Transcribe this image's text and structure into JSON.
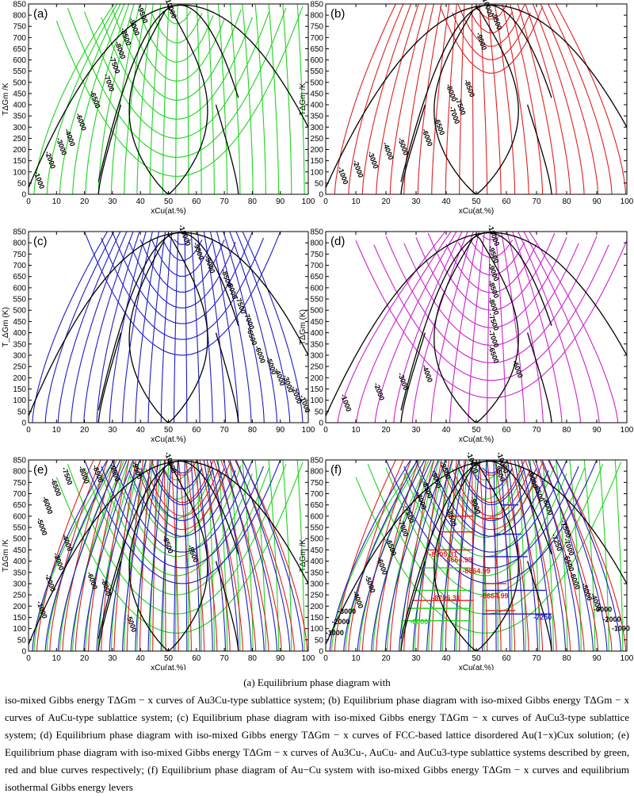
{
  "figure": {
    "y_label": "T_ΔGm /K",
    "x_label": "x_Cu(at.%)"
  },
  "chart_data": [
    {
      "type": "line",
      "panel": "(a)",
      "title": "",
      "xlabel": "xCu(at.%)",
      "ylabel": "TΔGm /K",
      "xlim": [
        0,
        100
      ],
      "ylim": [
        0,
        850
      ],
      "xticks": [
        0,
        10,
        20,
        30,
        40,
        50,
        60,
        70,
        80,
        90,
        100
      ],
      "yticks": [
        0,
        50,
        100,
        150,
        200,
        250,
        300,
        350,
        400,
        450,
        500,
        550,
        600,
        650,
        700,
        750,
        800,
        850
      ],
      "contour_color": "#1ed41e",
      "contour_labels": [
        {
          "text": "-10000",
          "x": 50,
          "y": 830
        },
        {
          "text": "-9500",
          "x": 40,
          "y": 800
        },
        {
          "text": "-9000",
          "x": 37,
          "y": 745
        },
        {
          "text": "-8500",
          "x": 34,
          "y": 700
        },
        {
          "text": "-8000",
          "x": 32,
          "y": 640
        },
        {
          "text": "-7500",
          "x": 30,
          "y": 575
        },
        {
          "text": "-7000",
          "x": 28,
          "y": 495
        },
        {
          "text": "-6500",
          "x": 23,
          "y": 420
        },
        {
          "text": "-6000",
          "x": 18,
          "y": 320
        },
        {
          "text": "-4000",
          "x": 14,
          "y": 250
        },
        {
          "text": "-3000",
          "x": 11,
          "y": 210
        },
        {
          "text": "-2000",
          "x": 7,
          "y": 150
        },
        {
          "text": "-1000",
          "x": 3,
          "y": 60
        }
      ]
    },
    {
      "type": "line",
      "panel": "(b)",
      "title": "",
      "xlabel": "xCu(at.%)",
      "ylabel": "TΔGm /K",
      "xlim": [
        0,
        100
      ],
      "ylim": [
        0,
        850
      ],
      "xticks": [
        0,
        10,
        20,
        30,
        40,
        50,
        60,
        70,
        80,
        90,
        100
      ],
      "yticks": [
        0,
        50,
        100,
        150,
        200,
        250,
        300,
        350,
        400,
        450,
        500,
        550,
        600,
        650,
        700,
        750,
        800,
        850
      ],
      "contour_color": "#e02020",
      "contour_labels": [
        {
          "text": "-10000",
          "x": 53,
          "y": 835
        },
        {
          "text": "-9500",
          "x": 56,
          "y": 770
        },
        {
          "text": "-9000",
          "x": 51,
          "y": 680
        },
        {
          "text": "-8500",
          "x": 47,
          "y": 470
        },
        {
          "text": "-8000",
          "x": 41,
          "y": 450
        },
        {
          "text": "-7500",
          "x": 44,
          "y": 390
        },
        {
          "text": "-7000",
          "x": 42,
          "y": 350
        },
        {
          "text": "-6500",
          "x": 37,
          "y": 300
        },
        {
          "text": "-6000",
          "x": 33,
          "y": 250
        },
        {
          "text": "-5000",
          "x": 25,
          "y": 210
        },
        {
          "text": "-4000",
          "x": 20,
          "y": 190
        },
        {
          "text": "-3000",
          "x": 15,
          "y": 150
        },
        {
          "text": "-2000",
          "x": 10,
          "y": 110
        },
        {
          "text": "-1000",
          "x": 5,
          "y": 80
        }
      ]
    },
    {
      "type": "line",
      "panel": "(c)",
      "title": "",
      "xlabel": "xCu(at.%)",
      "ylabel": "T_ΔGm (K)",
      "xlim": [
        0,
        100
      ],
      "ylim": [
        0,
        850
      ],
      "xticks": [
        0,
        10,
        20,
        30,
        40,
        50,
        60,
        70,
        80,
        90,
        100
      ],
      "yticks": [
        0,
        50,
        100,
        150,
        200,
        250,
        300,
        350,
        400,
        450,
        500,
        550,
        600,
        650,
        700,
        750,
        800,
        850
      ],
      "contour_color": "#1c1cc8",
      "contour_labels": [
        {
          "text": "-10000",
          "x": 55,
          "y": 830
        },
        {
          "text": "-9500",
          "x": 60,
          "y": 760
        },
        {
          "text": "-9000",
          "x": 64,
          "y": 700
        },
        {
          "text": "-8500",
          "x": 70,
          "y": 640
        },
        {
          "text": "-8000",
          "x": 72,
          "y": 585
        },
        {
          "text": "-7500",
          "x": 75,
          "y": 520
        },
        {
          "text": "-7000",
          "x": 78,
          "y": 450
        },
        {
          "text": "-6500",
          "x": 79,
          "y": 380
        },
        {
          "text": "-6000",
          "x": 82,
          "y": 300
        },
        {
          "text": "-5000",
          "x": 86,
          "y": 250
        },
        {
          "text": "-4000",
          "x": 89,
          "y": 200
        },
        {
          "text": "-3000",
          "x": 92,
          "y": 170
        },
        {
          "text": "-2000",
          "x": 95,
          "y": 120
        },
        {
          "text": "-1000",
          "x": 98,
          "y": 80
        }
      ]
    },
    {
      "type": "line",
      "panel": "(d)",
      "title": "",
      "xlabel": "xCu(at.%)",
      "ylabel": "TΔGm (K)",
      "xlim": [
        0,
        100
      ],
      "ylim": [
        0,
        850
      ],
      "xticks": [
        0,
        10,
        20,
        30,
        40,
        50,
        60,
        70,
        80,
        90,
        100
      ],
      "yticks": [
        0,
        50,
        100,
        150,
        200,
        250,
        300,
        350,
        400,
        450,
        500,
        550,
        600,
        650,
        700,
        750,
        800,
        850
      ],
      "contour_color": "#cc22cc",
      "contour_labels": [
        {
          "text": "-10000",
          "x": 55,
          "y": 830
        },
        {
          "text": "-9500",
          "x": 55,
          "y": 745
        },
        {
          "text": "-9000",
          "x": 55,
          "y": 665
        },
        {
          "text": "-8500",
          "x": 55,
          "y": 590
        },
        {
          "text": "-8000",
          "x": 55,
          "y": 515
        },
        {
          "text": "-7500",
          "x": 55,
          "y": 445
        },
        {
          "text": "-7000",
          "x": 55,
          "y": 370
        },
        {
          "text": "-6500",
          "x": 55,
          "y": 300
        },
        {
          "text": "-6000",
          "x": 63,
          "y": 235
        },
        {
          "text": "-4000",
          "x": 33,
          "y": 215
        },
        {
          "text": "-3000",
          "x": 25,
          "y": 180
        },
        {
          "text": "-2000",
          "x": 17,
          "y": 135
        },
        {
          "text": "-1000",
          "x": 6,
          "y": 85
        }
      ]
    },
    {
      "type": "line",
      "panel": "(e)",
      "title": "",
      "xlabel": "xCu(at.%)",
      "ylabel": "TΔGm /K",
      "xlim": [
        0,
        100
      ],
      "ylim": [
        0,
        850
      ],
      "xticks": [
        0,
        10,
        20,
        30,
        40,
        50,
        60,
        70,
        80,
        90,
        100
      ],
      "yticks": [
        0,
        50,
        100,
        150,
        200,
        250,
        300,
        350,
        400,
        450,
        500,
        550,
        600,
        650,
        700,
        750,
        800,
        850
      ],
      "series": [
        {
          "name": "Au3Cu",
          "color": "#1ed41e"
        },
        {
          "name": "AuCu",
          "color": "#e02020"
        },
        {
          "name": "AuCu3",
          "color": "#1c1cc8"
        }
      ],
      "contour_labels": [
        {
          "text": "-10000",
          "x": 50,
          "y": 835
        },
        {
          "text": "-9500",
          "x": 38,
          "y": 800
        },
        {
          "text": "-9000",
          "x": 30,
          "y": 790
        },
        {
          "text": "-8500",
          "x": 24,
          "y": 785
        },
        {
          "text": "-8000",
          "x": 19,
          "y": 780
        },
        {
          "text": "-7500",
          "x": 13,
          "y": 775
        },
        {
          "text": "-6500",
          "x": 9,
          "y": 725
        },
        {
          "text": "-6000",
          "x": 6,
          "y": 645
        },
        {
          "text": "-5000",
          "x": 4,
          "y": 550
        },
        {
          "text": "-4000",
          "x": 13,
          "y": 480
        },
        {
          "text": "-3000",
          "x": 10,
          "y": 395
        },
        {
          "text": "-2000",
          "x": 7,
          "y": 300
        },
        {
          "text": "-1000",
          "x": 4,
          "y": 180
        },
        {
          "text": "-8500",
          "x": 49,
          "y": 470
        },
        {
          "text": "-8500",
          "x": 58,
          "y": 430
        },
        {
          "text": "-6000",
          "x": 22,
          "y": 310
        },
        {
          "text": "-5000",
          "x": 36,
          "y": 120
        },
        {
          "text": "-8000",
          "x": 27,
          "y": 280
        }
      ]
    },
    {
      "type": "line",
      "panel": "(f)",
      "title": "",
      "xlabel": "xCu(at.%)",
      "ylabel": "TΔGm /K",
      "xlim": [
        0,
        100
      ],
      "ylim": [
        0,
        850
      ],
      "xticks": [
        0,
        10,
        20,
        30,
        40,
        50,
        60,
        70,
        80,
        90,
        100
      ],
      "yticks": [
        0,
        50,
        100,
        150,
        200,
        250,
        300,
        350,
        400,
        450,
        500,
        550,
        600,
        650,
        700,
        750,
        800,
        850
      ],
      "series": [
        {
          "name": "Au3Cu",
          "color": "#1ed41e"
        },
        {
          "name": "AuCu",
          "color": "#e02020"
        },
        {
          "name": "AuCu3",
          "color": "#1c1cc8"
        }
      ],
      "contour_labels": [
        {
          "text": "-10000",
          "x": 48,
          "y": 835
        },
        {
          "text": "-10000",
          "x": 58,
          "y": 835
        },
        {
          "text": "-9500",
          "x": 39,
          "y": 800
        },
        {
          "text": "-9000",
          "x": 36,
          "y": 760
        },
        {
          "text": "-8500",
          "x": 33,
          "y": 715
        },
        {
          "text": "-8000",
          "x": 31,
          "y": 665
        },
        {
          "text": "-7500",
          "x": 27,
          "y": 605
        },
        {
          "text": "-7000",
          "x": 25,
          "y": 545
        },
        {
          "text": "-6500",
          "x": 21,
          "y": 460
        },
        {
          "text": "-6000",
          "x": 18,
          "y": 375
        },
        {
          "text": "-5000",
          "x": 14,
          "y": 295
        },
        {
          "text": "-4000",
          "x": 10,
          "y": 225
        },
        {
          "text": "-3000",
          "x": 7,
          "y": 165
        },
        {
          "text": "-2000",
          "x": 5,
          "y": 120
        },
        {
          "text": "-1000",
          "x": 3,
          "y": 70
        },
        {
          "text": "-9500",
          "x": 57,
          "y": 790
        },
        {
          "text": "-9000",
          "x": 49,
          "y": 645
        },
        {
          "text": "-8500",
          "x": 41,
          "y": 590
        },
        {
          "text": "-9000",
          "x": 68,
          "y": 760
        },
        {
          "text": "-8500",
          "x": 70,
          "y": 700
        },
        {
          "text": "-8000",
          "x": 73,
          "y": 640
        },
        {
          "text": "-7500",
          "x": 79,
          "y": 540
        },
        {
          "text": "-7250",
          "x": 76,
          "y": 480
        },
        {
          "text": "-7000",
          "x": 80,
          "y": 460
        },
        {
          "text": "-6500",
          "x": 80,
          "y": 390
        },
        {
          "text": "-6000",
          "x": 82,
          "y": 310
        },
        {
          "text": "-5000",
          "x": 86,
          "y": 260
        },
        {
          "text": "-4000",
          "x": 89,
          "y": 215
        },
        {
          "text": "-3000",
          "x": 92,
          "y": 175
        },
        {
          "text": "-2000",
          "x": 95,
          "y": 130
        },
        {
          "text": "-1000",
          "x": 98,
          "y": 90
        },
        {
          "text": "-8705.31",
          "x": 39,
          "y": 420
        },
        {
          "text": "-8664.99",
          "x": 44,
          "y": 395
        },
        {
          "text": "-8664.99",
          "x": 50,
          "y": 345
        },
        {
          "text": "-8705.31",
          "x": 40,
          "y": 225
        },
        {
          "text": "-8664.99",
          "x": 56,
          "y": 235
        },
        {
          "text": "-7250",
          "x": 72,
          "y": 140
        },
        {
          "text": "-6000",
          "x": 31,
          "y": 120
        }
      ]
    }
  ],
  "caption": {
    "line1": "(a) Equilibrium phase diagram with",
    "text": "iso-mixed Gibbs energy TΔGm − x curves of Au3Cu-type sublattice system; (b) Equilibrium phase diagram with iso-mixed Gibbs energy TΔGm − x curves of AuCu-type sublattice system; (c) Equilibrium phase diagram with iso-mixed Gibbs energy TΔGm − x curves of AuCu3-type sublattice system; (d) Equilibrium phase diagram with iso-mixed Gibbs energy TΔGm − x curves of FCC-based lattice disordered Au(1−x)Cux solution; (e) Equilibrium phase diagram with iso-mixed Gibbs energy TΔGm − x curves of Au3Cu-, AuCu- and AuCu3-type sublattice systems described by green, red and blue curves respectively; (f) Equilibrium phase diagram of Au−Cu system with iso-mixed Gibbs energy TΔGm − x curves and equilibrium isothermal Gibbs energy levers"
  }
}
